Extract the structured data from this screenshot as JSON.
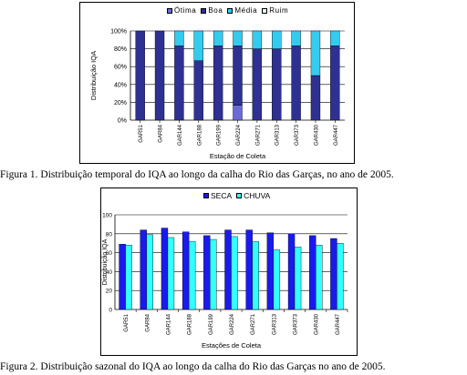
{
  "figure1": {
    "caption": "Figura 1. Distribuição temporal do IQA ao longo da calha do Rio das Garças, no ano de 2005.",
    "chart_data": {
      "type": "bar",
      "stacked": true,
      "categories": [
        "GAR51",
        "GAR84",
        "GAR144",
        "GAR188",
        "GAR199",
        "GAR224",
        "GAR271",
        "GAR313",
        "GAR373",
        "GAR430",
        "GAR447"
      ],
      "series": [
        {
          "name": "Ótima",
          "color": "#6a6ad8",
          "values": [
            0,
            0,
            0,
            0,
            0,
            16.7,
            0,
            0,
            0,
            0,
            0
          ]
        },
        {
          "name": "Boa",
          "color": "#2e3192",
          "values": [
            100,
            100,
            83.3,
            66.7,
            83.3,
            66.6,
            80,
            80,
            83.3,
            50,
            83.3
          ]
        },
        {
          "name": "Média",
          "color": "#33ccee",
          "values": [
            0,
            0,
            16.7,
            33.3,
            16.7,
            16.7,
            20,
            20,
            16.7,
            50,
            16.7
          ]
        },
        {
          "name": "Ruim",
          "color": "#e8f8f8",
          "values": [
            0,
            0,
            0,
            0,
            0,
            0,
            0,
            0,
            0,
            0,
            0
          ]
        }
      ],
      "yticks": [
        "0%",
        "20%",
        "40%",
        "60%",
        "80%",
        "100%"
      ],
      "ylim": [
        0,
        100
      ],
      "xlabel": "Estação de Coleta",
      "ylabel": "Distribuição IQA",
      "legend_position": "top"
    }
  },
  "figure2": {
    "caption": "Figura 2. Distribuição sazonal do IQA ao longo da calha do Rio das Garças no ano de 2005.",
    "chart_data": {
      "type": "bar",
      "categories": [
        "GAR51",
        "GAR84",
        "GAR144",
        "GAR188",
        "GAR199",
        "GAR224",
        "GAR271",
        "GAR313",
        "GAR373",
        "GAR430",
        "GAR447"
      ],
      "series": [
        {
          "name": "SECA",
          "color": "#1a1aee",
          "values": [
            69,
            84,
            86,
            82,
            78,
            84,
            84,
            81,
            80,
            78,
            75
          ]
        },
        {
          "name": "CHUVA",
          "color": "#33ffff",
          "values": [
            68,
            79,
            76,
            72,
            74,
            77,
            72,
            63,
            66,
            68,
            70
          ]
        }
      ],
      "yticks": [
        "0",
        "20",
        "40",
        "60",
        "80",
        "100"
      ],
      "ylim": [
        0,
        100
      ],
      "xlabel": "Estações de Coleta",
      "ylabel": "Distribuição IQA",
      "legend_position": "top"
    }
  }
}
